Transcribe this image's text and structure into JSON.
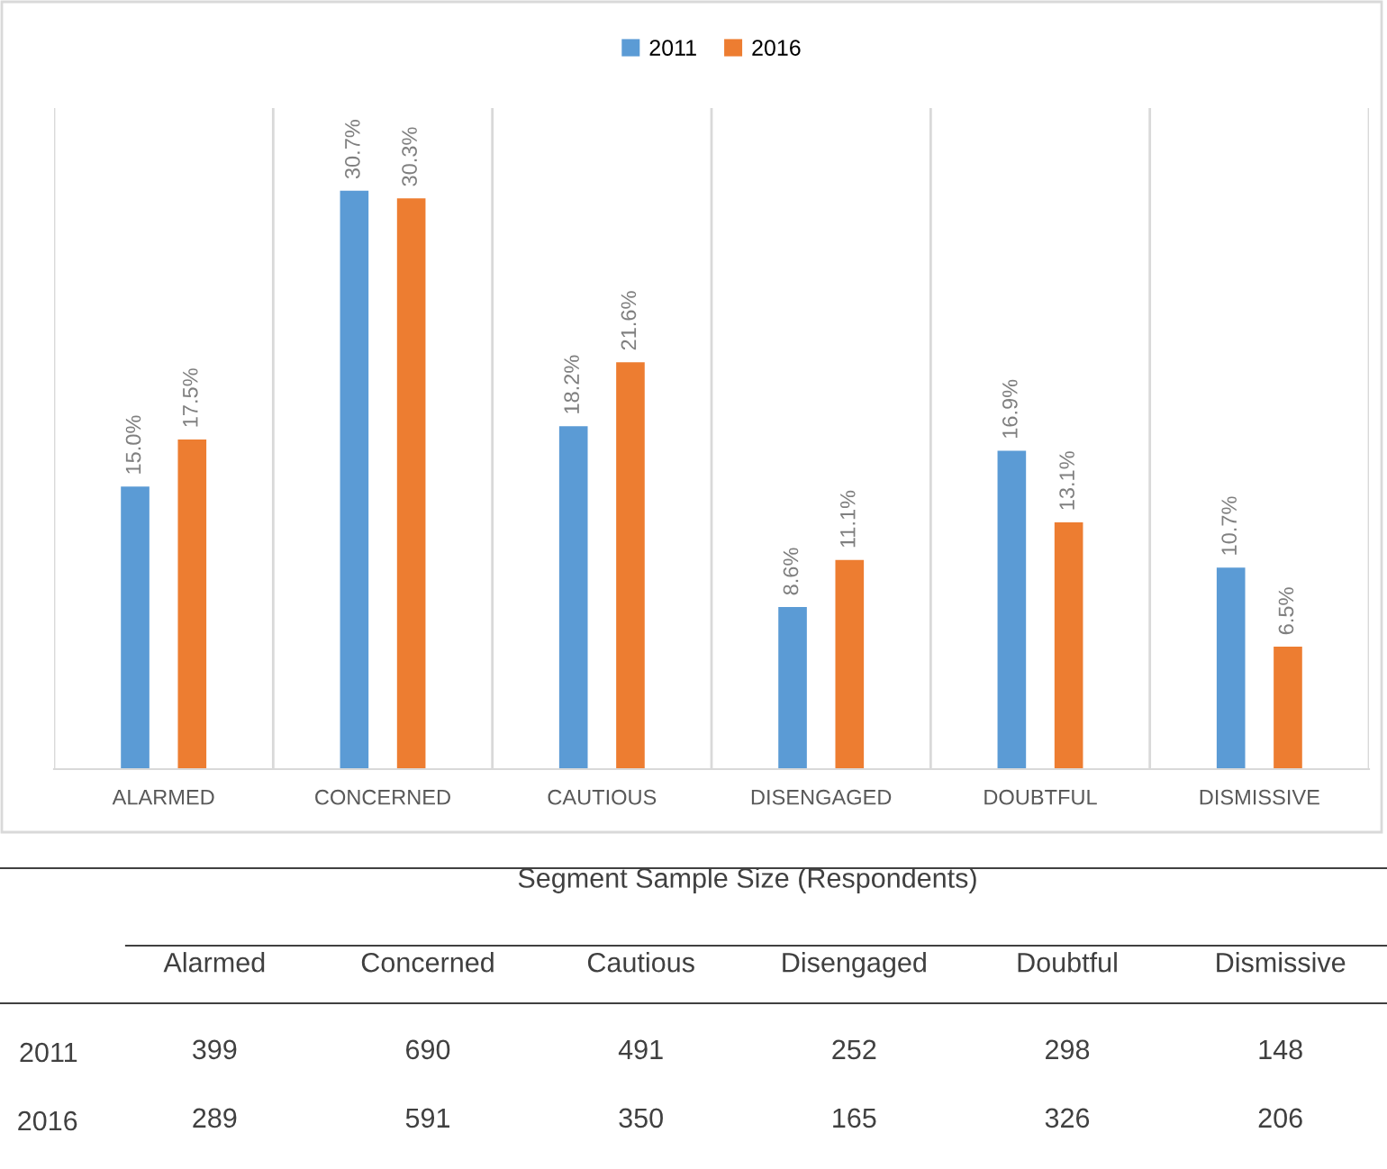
{
  "chart_data": [
    {
      "type": "bar",
      "categories": [
        "ALARMED",
        "CONCERNED",
        "CAUTIOUS",
        "DISENGAGED",
        "DOUBTFUL",
        "DISMISSIVE"
      ],
      "series": [
        {
          "name": "2011",
          "color": "#5b9bd5",
          "values": [
            15.0,
            30.7,
            18.2,
            8.6,
            16.9,
            10.7
          ],
          "value_labels": [
            "15.0%",
            "30.7%",
            "18.2%",
            "8.6%",
            "16.9%",
            "10.7%"
          ]
        },
        {
          "name": "2016",
          "color": "#ed7d31",
          "values": [
            17.5,
            30.3,
            21.6,
            11.1,
            13.1,
            6.5
          ],
          "value_labels": [
            "17.5%",
            "30.3%",
            "21.6%",
            "11.1%",
            "13.1%",
            "6.5%"
          ]
        }
      ],
      "legend": "top",
      "grid": "x",
      "tick_labels": "x"
    },
    {
      "type": "heatmap",
      "title": "Segment Sample Size (Respondents)",
      "categories": [
        "Alarmed",
        "Concerned",
        "Cautious",
        "Disengaged",
        "Doubtful",
        "Dismissive"
      ],
      "y_categories": [
        "2011",
        "2016"
      ],
      "data_labels": true,
      "cells": [
        [
          399,
          690,
          491,
          252,
          298,
          148
        ],
        [
          289,
          591,
          350,
          165,
          326,
          206
        ]
      ]
    }
  ]
}
